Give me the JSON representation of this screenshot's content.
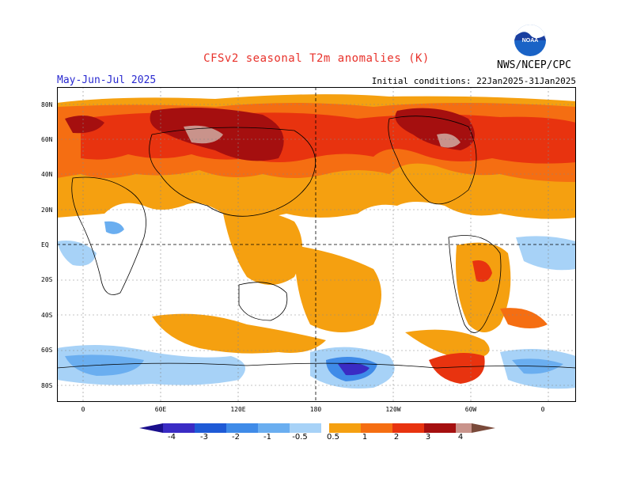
{
  "header": {
    "title": "CFSv2 seasonal T2m anomalies (K)",
    "agency": "NWS/NCEP/CPC",
    "season": "May-Jun-Jul 2025",
    "initial_conditions": "Initial conditions: 22Jan2025-31Jan2025",
    "logo_text": "NOAA"
  },
  "map": {
    "lat_labels": [
      "80N",
      "60N",
      "40N",
      "20N",
      "EQ",
      "20S",
      "40S",
      "60S",
      "80S"
    ],
    "lon_labels": [
      "0",
      "60E",
      "120E",
      "180",
      "120W",
      "60W",
      "0"
    ],
    "background_color": "#ffffff"
  },
  "colorbar": {
    "labels": [
      "-4",
      "-3",
      "-2",
      "-1",
      "-0.5",
      "0.5",
      "1",
      "2",
      "3",
      "4"
    ],
    "negative_colors": [
      "#1a0f8c",
      "#3a2bc4",
      "#1e5ad6",
      "#3f8be8",
      "#6aaef0",
      "#a7d2f7"
    ],
    "positive_colors": [
      "#f5a010",
      "#f56e12",
      "#e8330f",
      "#a50f0f",
      "#c9938b",
      "#7a4a3a"
    ]
  }
}
